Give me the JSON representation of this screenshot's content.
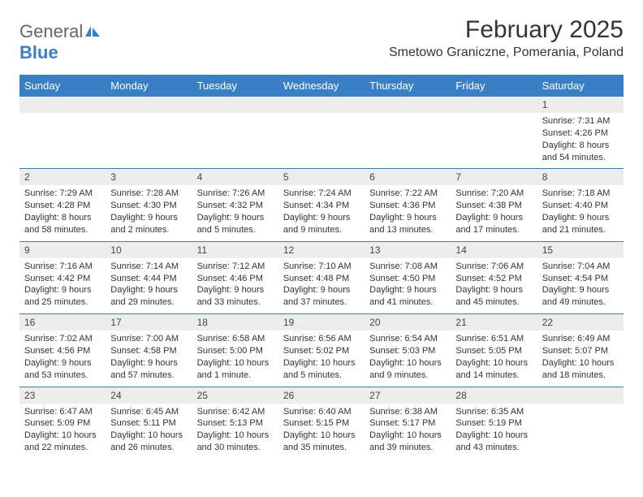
{
  "brand": {
    "general": "General",
    "blue": "Blue"
  },
  "title": "February 2025",
  "location": "Smetowo Graniczne, Pomerania, Poland",
  "colors": {
    "header_bg": "#3a7fc4",
    "header_text": "#ffffff",
    "daynum_bg": "#ededed",
    "text": "#333333",
    "divider": "#3a7fc4",
    "brand_gray": "#666666",
    "brand_blue": "#3a7fc4",
    "page_bg": "#ffffff"
  },
  "typography": {
    "title_fontsize": 30,
    "location_fontsize": 16,
    "header_fontsize": 13,
    "daynum_fontsize": 12,
    "body_fontsize": 11
  },
  "dayHeaders": [
    "Sunday",
    "Monday",
    "Tuesday",
    "Wednesday",
    "Thursday",
    "Friday",
    "Saturday"
  ],
  "weeks": [
    [
      {
        "num": "",
        "sunrise": "",
        "sunset": "",
        "daylight": ""
      },
      {
        "num": "",
        "sunrise": "",
        "sunset": "",
        "daylight": ""
      },
      {
        "num": "",
        "sunrise": "",
        "sunset": "",
        "daylight": ""
      },
      {
        "num": "",
        "sunrise": "",
        "sunset": "",
        "daylight": ""
      },
      {
        "num": "",
        "sunrise": "",
        "sunset": "",
        "daylight": ""
      },
      {
        "num": "",
        "sunrise": "",
        "sunset": "",
        "daylight": ""
      },
      {
        "num": "1",
        "sunrise": "Sunrise: 7:31 AM",
        "sunset": "Sunset: 4:26 PM",
        "daylight": "Daylight: 8 hours and 54 minutes."
      }
    ],
    [
      {
        "num": "2",
        "sunrise": "Sunrise: 7:29 AM",
        "sunset": "Sunset: 4:28 PM",
        "daylight": "Daylight: 8 hours and 58 minutes."
      },
      {
        "num": "3",
        "sunrise": "Sunrise: 7:28 AM",
        "sunset": "Sunset: 4:30 PM",
        "daylight": "Daylight: 9 hours and 2 minutes."
      },
      {
        "num": "4",
        "sunrise": "Sunrise: 7:26 AM",
        "sunset": "Sunset: 4:32 PM",
        "daylight": "Daylight: 9 hours and 5 minutes."
      },
      {
        "num": "5",
        "sunrise": "Sunrise: 7:24 AM",
        "sunset": "Sunset: 4:34 PM",
        "daylight": "Daylight: 9 hours and 9 minutes."
      },
      {
        "num": "6",
        "sunrise": "Sunrise: 7:22 AM",
        "sunset": "Sunset: 4:36 PM",
        "daylight": "Daylight: 9 hours and 13 minutes."
      },
      {
        "num": "7",
        "sunrise": "Sunrise: 7:20 AM",
        "sunset": "Sunset: 4:38 PM",
        "daylight": "Daylight: 9 hours and 17 minutes."
      },
      {
        "num": "8",
        "sunrise": "Sunrise: 7:18 AM",
        "sunset": "Sunset: 4:40 PM",
        "daylight": "Daylight: 9 hours and 21 minutes."
      }
    ],
    [
      {
        "num": "9",
        "sunrise": "Sunrise: 7:16 AM",
        "sunset": "Sunset: 4:42 PM",
        "daylight": "Daylight: 9 hours and 25 minutes."
      },
      {
        "num": "10",
        "sunrise": "Sunrise: 7:14 AM",
        "sunset": "Sunset: 4:44 PM",
        "daylight": "Daylight: 9 hours and 29 minutes."
      },
      {
        "num": "11",
        "sunrise": "Sunrise: 7:12 AM",
        "sunset": "Sunset: 4:46 PM",
        "daylight": "Daylight: 9 hours and 33 minutes."
      },
      {
        "num": "12",
        "sunrise": "Sunrise: 7:10 AM",
        "sunset": "Sunset: 4:48 PM",
        "daylight": "Daylight: 9 hours and 37 minutes."
      },
      {
        "num": "13",
        "sunrise": "Sunrise: 7:08 AM",
        "sunset": "Sunset: 4:50 PM",
        "daylight": "Daylight: 9 hours and 41 minutes."
      },
      {
        "num": "14",
        "sunrise": "Sunrise: 7:06 AM",
        "sunset": "Sunset: 4:52 PM",
        "daylight": "Daylight: 9 hours and 45 minutes."
      },
      {
        "num": "15",
        "sunrise": "Sunrise: 7:04 AM",
        "sunset": "Sunset: 4:54 PM",
        "daylight": "Daylight: 9 hours and 49 minutes."
      }
    ],
    [
      {
        "num": "16",
        "sunrise": "Sunrise: 7:02 AM",
        "sunset": "Sunset: 4:56 PM",
        "daylight": "Daylight: 9 hours and 53 minutes."
      },
      {
        "num": "17",
        "sunrise": "Sunrise: 7:00 AM",
        "sunset": "Sunset: 4:58 PM",
        "daylight": "Daylight: 9 hours and 57 minutes."
      },
      {
        "num": "18",
        "sunrise": "Sunrise: 6:58 AM",
        "sunset": "Sunset: 5:00 PM",
        "daylight": "Daylight: 10 hours and 1 minute."
      },
      {
        "num": "19",
        "sunrise": "Sunrise: 6:56 AM",
        "sunset": "Sunset: 5:02 PM",
        "daylight": "Daylight: 10 hours and 5 minutes."
      },
      {
        "num": "20",
        "sunrise": "Sunrise: 6:54 AM",
        "sunset": "Sunset: 5:03 PM",
        "daylight": "Daylight: 10 hours and 9 minutes."
      },
      {
        "num": "21",
        "sunrise": "Sunrise: 6:51 AM",
        "sunset": "Sunset: 5:05 PM",
        "daylight": "Daylight: 10 hours and 14 minutes."
      },
      {
        "num": "22",
        "sunrise": "Sunrise: 6:49 AM",
        "sunset": "Sunset: 5:07 PM",
        "daylight": "Daylight: 10 hours and 18 minutes."
      }
    ],
    [
      {
        "num": "23",
        "sunrise": "Sunrise: 6:47 AM",
        "sunset": "Sunset: 5:09 PM",
        "daylight": "Daylight: 10 hours and 22 minutes."
      },
      {
        "num": "24",
        "sunrise": "Sunrise: 6:45 AM",
        "sunset": "Sunset: 5:11 PM",
        "daylight": "Daylight: 10 hours and 26 minutes."
      },
      {
        "num": "25",
        "sunrise": "Sunrise: 6:42 AM",
        "sunset": "Sunset: 5:13 PM",
        "daylight": "Daylight: 10 hours and 30 minutes."
      },
      {
        "num": "26",
        "sunrise": "Sunrise: 6:40 AM",
        "sunset": "Sunset: 5:15 PM",
        "daylight": "Daylight: 10 hours and 35 minutes."
      },
      {
        "num": "27",
        "sunrise": "Sunrise: 6:38 AM",
        "sunset": "Sunset: 5:17 PM",
        "daylight": "Daylight: 10 hours and 39 minutes."
      },
      {
        "num": "28",
        "sunrise": "Sunrise: 6:35 AM",
        "sunset": "Sunset: 5:19 PM",
        "daylight": "Daylight: 10 hours and 43 minutes."
      },
      {
        "num": "",
        "sunrise": "",
        "sunset": "",
        "daylight": ""
      }
    ]
  ]
}
